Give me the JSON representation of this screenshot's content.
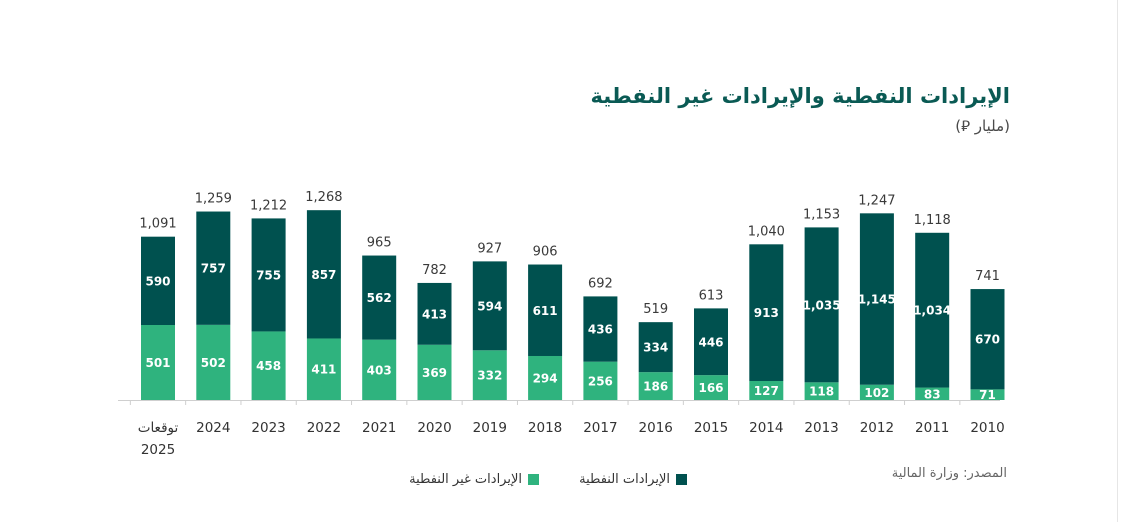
{
  "title": "الإيرادات النفطية والإيرادات غير النفطية",
  "subtitle": "(مليار ⃁)",
  "source": "المصدر: وزارة المالية",
  "colors": {
    "oil": "#00514f",
    "non_oil": "#2fb37e",
    "text": "#3a3a3a",
    "axis": "#cfcfcf"
  },
  "chart_data": {
    "type": "bar",
    "stacked": true,
    "categories": [
      "توقعات\n2025",
      "2024",
      "2023",
      "2022",
      "2021",
      "2020",
      "2019",
      "2018",
      "2017",
      "2016",
      "2015",
      "2014",
      "2013",
      "2012",
      "2011",
      "2010"
    ],
    "series": [
      {
        "name": "الإيرادات غير النفطية",
        "key": "non_oil",
        "values": [
          501,
          502,
          458,
          411,
          403,
          369,
          332,
          294,
          256,
          186,
          166,
          127,
          118,
          102,
          83,
          71
        ]
      },
      {
        "name": "الإيرادات النفطية",
        "key": "oil",
        "values": [
          590,
          757,
          755,
          857,
          562,
          413,
          594,
          611,
          436,
          334,
          446,
          913,
          1035,
          1145,
          1034,
          670
        ]
      }
    ],
    "totals": [
      "1,091",
      "1,259",
      "1,212",
      "1,268",
      "965",
      "782",
      "927",
      "906",
      "692",
      "519",
      "613",
      "1,040",
      "1,153",
      "1,247",
      "1,118",
      "741"
    ],
    "segment_labels": {
      "non_oil": [
        "501",
        "502",
        "458",
        "411",
        "403",
        "369",
        "332",
        "294",
        "256",
        "186",
        "166",
        "127",
        "118",
        "102",
        "83",
        "71"
      ],
      "oil": [
        "590",
        "757",
        "755",
        "857",
        "562",
        "413",
        "594",
        "611",
        "436",
        "334",
        "446",
        "913",
        "1,035",
        "1,145",
        "1,034",
        "670"
      ]
    },
    "ylim": [
      0,
      1300
    ],
    "grid": false,
    "legend_position": "bottom"
  }
}
